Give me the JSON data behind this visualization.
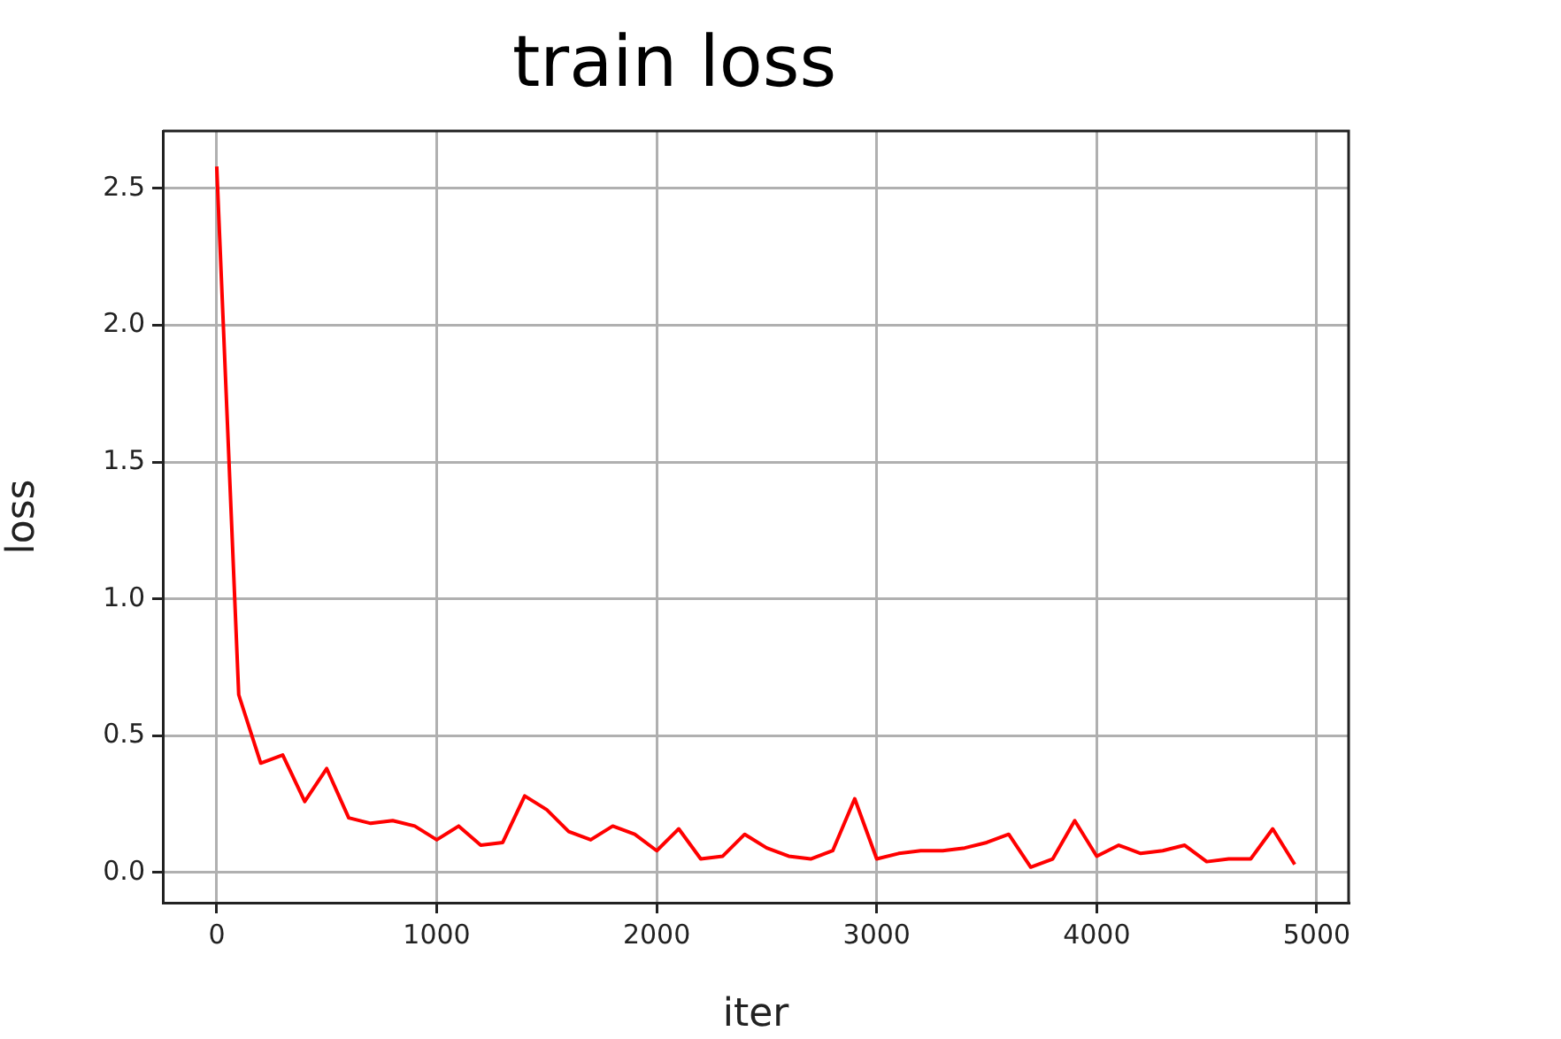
{
  "chart_data": {
    "type": "line",
    "title": "train loss",
    "xlabel": "iter",
    "ylabel": "loss",
    "x": [
      0,
      100,
      200,
      300,
      400,
      500,
      600,
      700,
      800,
      900,
      1000,
      1100,
      1200,
      1300,
      1400,
      1500,
      1600,
      1700,
      1800,
      1900,
      2000,
      2100,
      2200,
      2300,
      2400,
      2500,
      2600,
      2700,
      2800,
      2900,
      3000,
      3100,
      3200,
      3300,
      3400,
      3500,
      3600,
      3700,
      3800,
      3900,
      4000,
      4100,
      4200,
      4300,
      4400,
      4500,
      4600,
      4700,
      4800,
      4900
    ],
    "series": [
      {
        "color": "#ff0000",
        "values": [
          2.58,
          0.65,
          0.4,
          0.43,
          0.26,
          0.38,
          0.2,
          0.18,
          0.19,
          0.17,
          0.12,
          0.17,
          0.1,
          0.11,
          0.28,
          0.23,
          0.15,
          0.12,
          0.17,
          0.14,
          0.08,
          0.16,
          0.05,
          0.06,
          0.14,
          0.09,
          0.06,
          0.05,
          0.08,
          0.27,
          0.05,
          0.07,
          0.08,
          0.08,
          0.09,
          0.11,
          0.14,
          0.02,
          0.05,
          0.19,
          0.06,
          0.1,
          0.07,
          0.08,
          0.1,
          0.04,
          0.05,
          0.05,
          0.16,
          0.03
        ]
      }
    ],
    "xlim": [
      -245,
      5145
    ],
    "xticks": [
      0,
      1000,
      2000,
      3000,
      4000,
      5000
    ],
    "ylim": [
      -0.11,
      2.71
    ],
    "yticks": [
      {
        "value": 0,
        "label": "0.0"
      },
      0.5,
      {
        "value": 1,
        "label": "1.0"
      },
      1.5,
      {
        "value": 2,
        "label": "2.0"
      },
      2.5
    ],
    "grid": true,
    "legend": false,
    "marker": "none",
    "line_style": "solid"
  }
}
